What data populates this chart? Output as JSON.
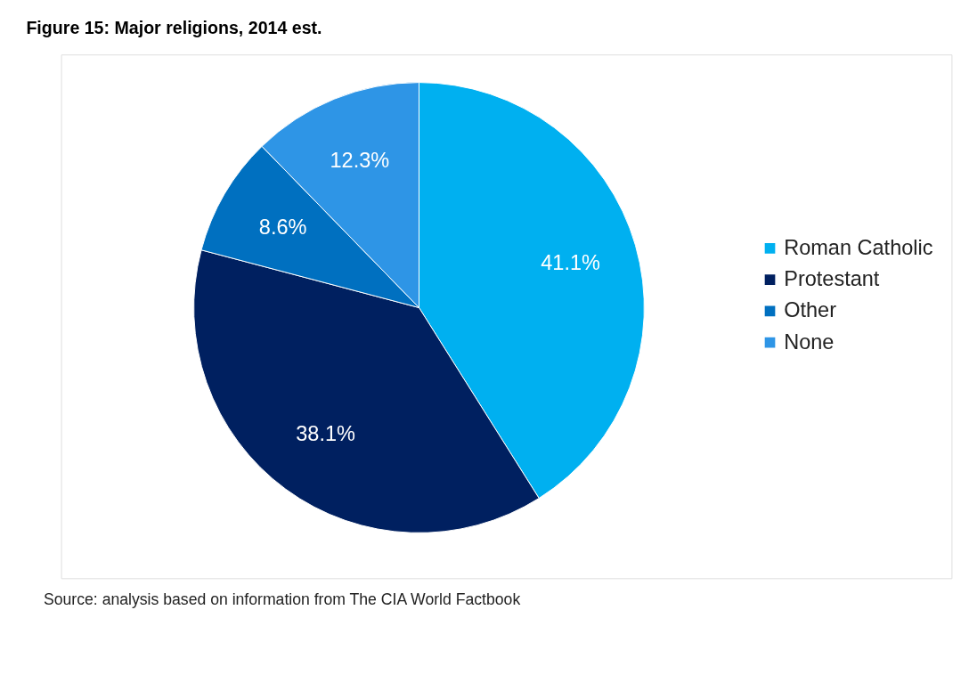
{
  "chart_data": {
    "type": "pie",
    "title": "Figure 15: Major religions, 2014 est.",
    "categories": [
      "Roman Catholic",
      "Protestant",
      "Other",
      "None"
    ],
    "values": [
      41.1,
      38.1,
      8.6,
      12.3
    ],
    "value_labels": [
      "41.1%",
      "38.1%",
      "8.6%",
      "12.3%"
    ],
    "colors": [
      "#00b0f0",
      "#002060",
      "#0070c0",
      "#2e95e6"
    ],
    "legend": "right",
    "annotations": [
      "Source: analysis based on information from The CIA World Factbook"
    ]
  }
}
